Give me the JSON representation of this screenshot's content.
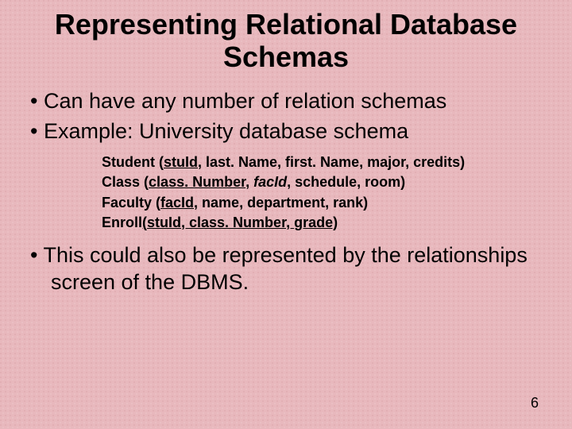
{
  "background_color": "#e8b8bd",
  "text_color": "#000000",
  "title_fontsize": 36,
  "bullet_fontsize": 27,
  "schema_fontsize": 18,
  "page_number_fontsize": 18,
  "title": "Representing Relational Database Schemas",
  "bullets": {
    "b1": "Can have any number of relation schemas",
    "b2": "Example: University database schema",
    "b3": "This could also be represented by the relationships screen of the DBMS."
  },
  "schemas": {
    "student": {
      "name": "Student",
      "open": " (",
      "key": "stuId",
      "rest": ", last. Name, first. Name, major, credits)"
    },
    "class": {
      "name": "Class",
      "open": " (",
      "key": "class. Number",
      "mid": ", ",
      "fk_italic": "facId",
      "rest": ", schedule, room)"
    },
    "faculty": {
      "name": "Faculty",
      "open": " (",
      "key": "facId",
      "rest": ", name, department, rank)"
    },
    "enroll": {
      "name": "Enroll",
      "open": "(",
      "key": "stuId, class. Number, ",
      "rest": "grade)"
    }
  },
  "page_number": "6"
}
